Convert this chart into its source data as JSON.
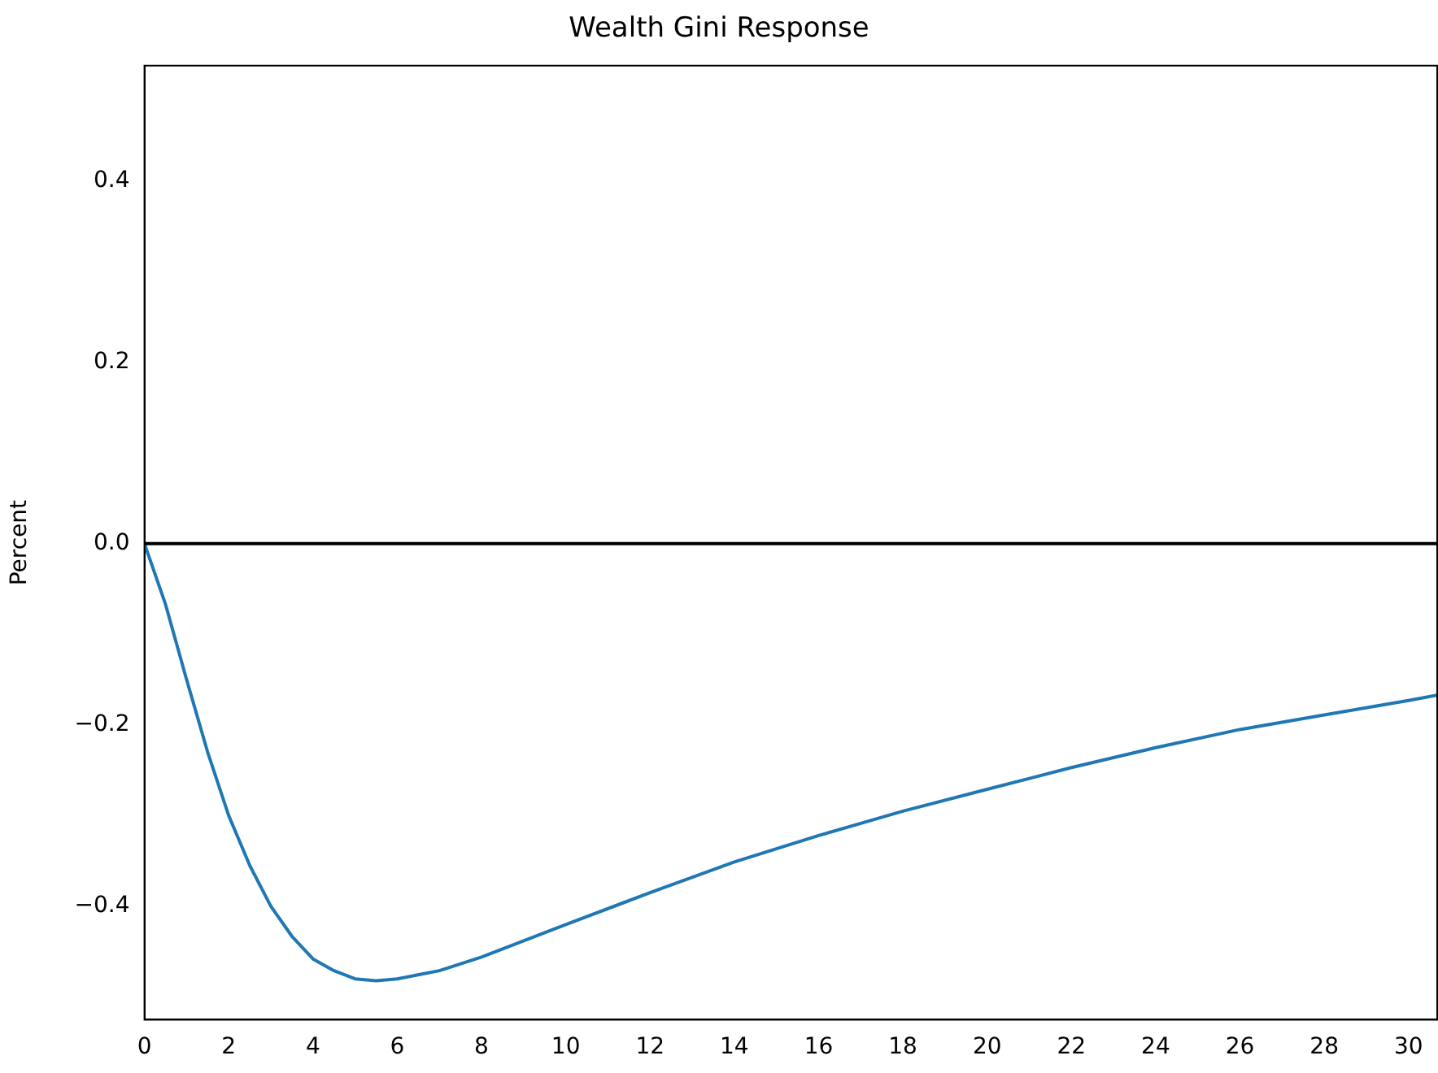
{
  "chart_data": {
    "type": "line",
    "title": "Wealth Gini Response",
    "ylabel": "Percent",
    "x": [
      0,
      0.5,
      1,
      1.5,
      2,
      2.5,
      3,
      3.5,
      4,
      4.5,
      5,
      5.5,
      6,
      7,
      8,
      10,
      12,
      14,
      16,
      18,
      20,
      22,
      24,
      26,
      28,
      30,
      30.7
    ],
    "series": [
      {
        "color": "#1f77b4",
        "values": [
          0,
          -0.067,
          -0.15,
          -0.23,
          -0.3,
          -0.355,
          -0.4,
          -0.433,
          -0.458,
          -0.471,
          -0.48,
          -0.482,
          -0.48,
          -0.471,
          -0.456,
          -0.42,
          -0.385,
          -0.351,
          -0.322,
          -0.295,
          -0.271,
          -0.247,
          -0.225,
          -0.205,
          -0.189,
          -0.173,
          -0.167
        ]
      }
    ],
    "xlim": [
      0,
      30.7
    ],
    "ylim": [
      -0.525,
      0.527
    ],
    "xticks": [
      0,
      2,
      4,
      6,
      8,
      10,
      12,
      14,
      16,
      18,
      20,
      22,
      24,
      26,
      28,
      30
    ],
    "yticks": [
      {
        "value": -0.4,
        "label": "−0.4"
      },
      {
        "value": -0.2,
        "label": "−0.2"
      },
      {
        "value": 0,
        "label": "0.0"
      },
      {
        "value": 0.2,
        "label": "0.2"
      },
      {
        "value": 0.4,
        "label": "0.4"
      }
    ],
    "ref_lines": [
      {
        "axis": "y",
        "value": 0,
        "color": "#000000"
      }
    ],
    "grid": false,
    "legend": false,
    "marker": "none",
    "line_style": "solid"
  }
}
